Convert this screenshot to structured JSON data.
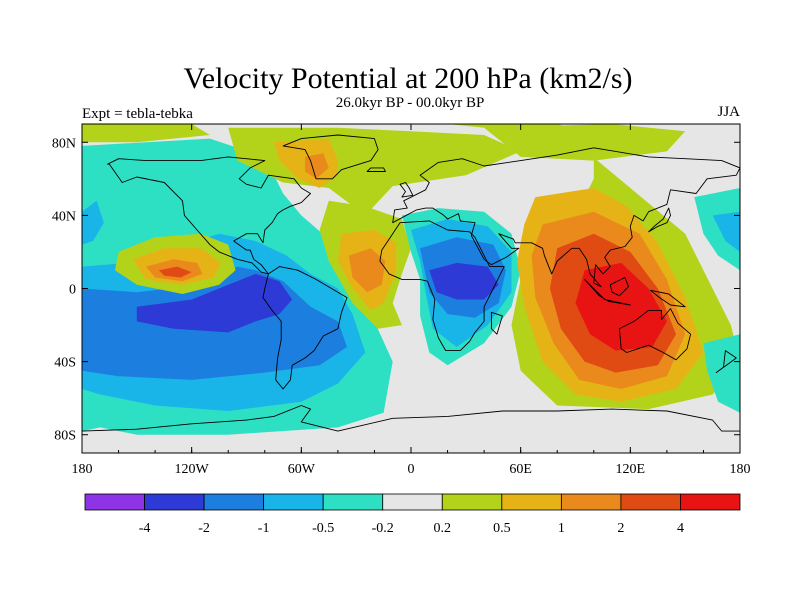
{
  "chart_data": {
    "type": "heatmap",
    "title": "Velocity Potential at 200 hPa (km2/s)",
    "left_label": "Expt = tebla-tebka",
    "center_label": "26.0kyr BP - 00.0kyr BP",
    "right_label": "JJA",
    "xlim": [
      -180,
      180
    ],
    "ylim": [
      -90,
      90
    ],
    "x_ticks": [
      {
        "value": -180,
        "label": "180"
      },
      {
        "value": -120,
        "label": "120W"
      },
      {
        "value": -60,
        "label": "60W"
      },
      {
        "value": 0,
        "label": "0"
      },
      {
        "value": 60,
        "label": "60E"
      },
      {
        "value": 120,
        "label": "120E"
      },
      {
        "value": 180,
        "label": "180"
      }
    ],
    "y_ticks": [
      {
        "value": 80,
        "label": "80N"
      },
      {
        "value": 40,
        "label": "40N"
      },
      {
        "value": 0,
        "label": "0"
      },
      {
        "value": -40,
        "label": "40S"
      },
      {
        "value": -80,
        "label": "80S"
      }
    ],
    "levels": [
      "-4",
      "-2",
      "-1",
      "-0.5",
      "-0.2",
      "0.2",
      "0.5",
      "1",
      "2",
      "4"
    ],
    "colors": [
      "#8f33e6",
      "#2e3ad6",
      "#1c7fe0",
      "#19b4e8",
      "#2ee0c3",
      "#e6e6e6",
      "#b3d31a",
      "#e6b316",
      "#ea8a1d",
      "#e04b14",
      "#e81414"
    ],
    "coast_color": "#000000"
  }
}
